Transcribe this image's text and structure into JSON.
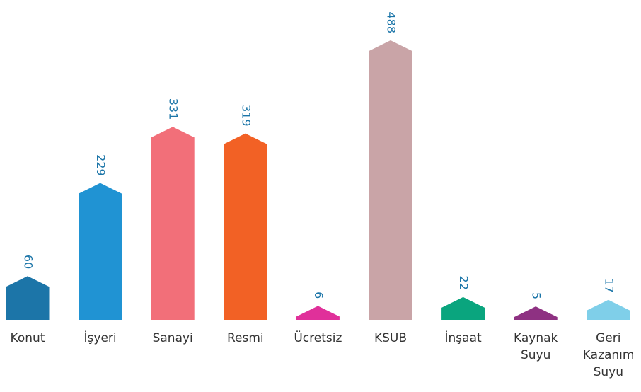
{
  "chart_data": {
    "type": "bar",
    "categories": [
      "Konut",
      "İşyeri",
      "Sanayi",
      "Resmi",
      "Ücretsiz",
      "KSUB",
      "İnşaat",
      "Kaynak Suyu",
      "Geri Kazanım Suyu"
    ],
    "values": [
      60,
      229,
      331,
      319,
      6,
      488,
      22,
      5,
      17
    ],
    "colors": [
      "#1c75a8",
      "#2093d3",
      "#f26f79",
      "#f26125",
      "#e0309a",
      "#c9a4a7",
      "#0aa57e",
      "#8e3182",
      "#7fcfe9"
    ],
    "label_color": "#1b75a8"
  }
}
